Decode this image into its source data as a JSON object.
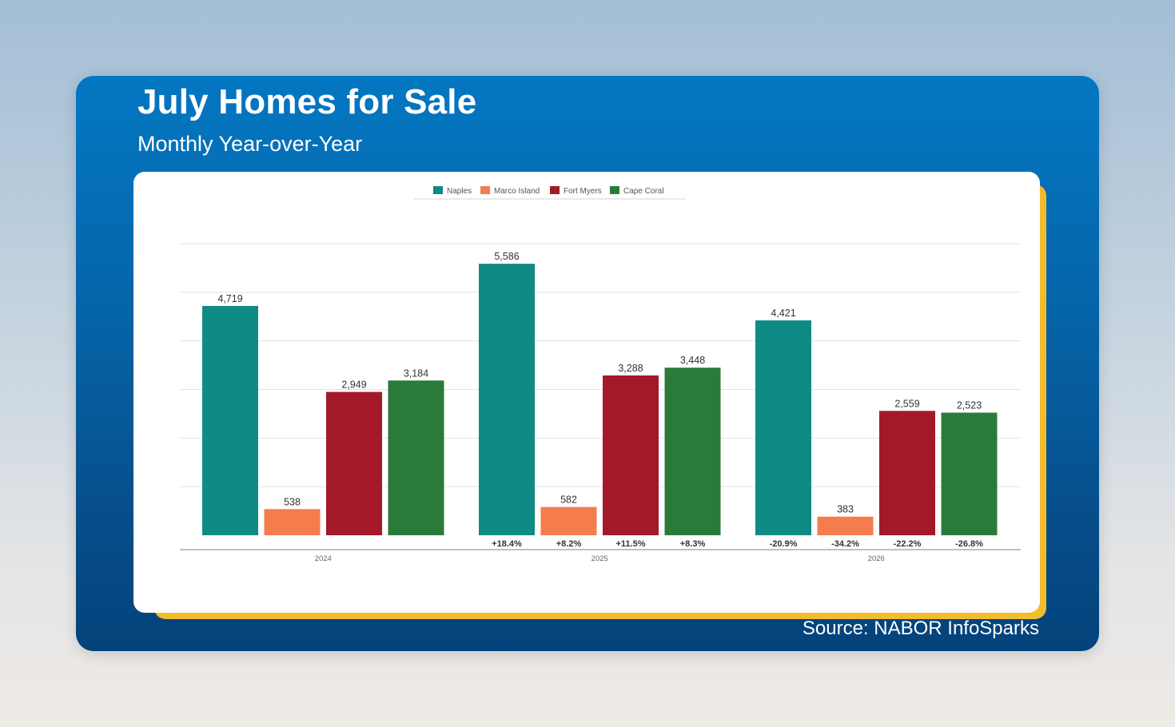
{
  "slide": {
    "title": "July Homes for Sale",
    "subtitle": "Monthly Year-over-Year",
    "source": "Source: NABOR InfoSparks"
  },
  "colors": {
    "background_top": "#0477c2",
    "background_bottom": "#04427a",
    "card_accent": "#f3bb2d"
  },
  "chart_data": {
    "type": "bar",
    "categories": [
      "2024",
      "2025",
      "2026"
    ],
    "series": [
      {
        "name": "Naples",
        "color": "#0f8a84",
        "values": [
          4719,
          5586,
          4421
        ],
        "labels": [
          "4,719",
          "5,586",
          "4,421"
        ],
        "changes": [
          "",
          "+18.4%",
          "-20.9%"
        ]
      },
      {
        "name": "Marco Island",
        "color": "#f57c4c",
        "values": [
          538,
          582,
          383
        ],
        "labels": [
          "538",
          "582",
          "383"
        ],
        "changes": [
          "",
          "+8.2%",
          "-34.2%"
        ]
      },
      {
        "name": "Fort Myers",
        "color": "#a3192a",
        "values": [
          2949,
          3288,
          2559
        ],
        "labels": [
          "2,949",
          "3,288",
          "2,559"
        ],
        "changes": [
          "",
          "+11.5%",
          "-22.2%"
        ]
      },
      {
        "name": "Cape Coral",
        "color": "#2a7b3a",
        "values": [
          3184,
          3448,
          2523
        ],
        "labels": [
          "3,184",
          "3,448",
          "2,523"
        ],
        "changes": [
          "",
          "+8.3%",
          "-26.8%"
        ]
      }
    ],
    "ylim": [
      0,
      6000
    ],
    "grid": true,
    "legend": "top-center",
    "xlabel": "",
    "ylabel": ""
  }
}
